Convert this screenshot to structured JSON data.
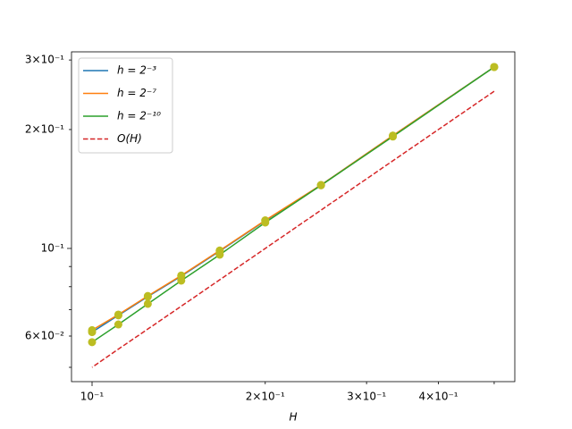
{
  "chart_data": {
    "type": "line",
    "xlabel": "H",
    "x": [
      0.5,
      0.3333,
      0.25,
      0.2,
      0.1667,
      0.1429,
      0.125,
      0.1111,
      0.1
    ],
    "series": [
      {
        "name": "h = 2⁻³",
        "color": "#1f77b4",
        "values": [
          0.288,
          0.193,
          0.1447,
          0.1175,
          0.0985,
          0.0851,
          0.0755,
          0.0677,
          0.0614
        ]
      },
      {
        "name": "h = 2⁻⁷",
        "color": "#ff7f0e",
        "values": [
          0.288,
          0.193,
          0.1447,
          0.1178,
          0.0988,
          0.0854,
          0.0758,
          0.068,
          0.0621
        ]
      },
      {
        "name": "h = 2⁻¹⁰",
        "color": "#2ca02c",
        "values": [
          0.288,
          0.192,
          0.1445,
          0.1163,
          0.0964,
          0.0829,
          0.0724,
          0.0642,
          0.0579
        ]
      },
      {
        "name": "O(H)",
        "color": "#d62728",
        "dashed": true,
        "markers": false,
        "values": [
          0.25,
          0.1667,
          0.125,
          0.1,
          0.0833,
          0.0714,
          0.0625,
          0.0556,
          0.05
        ]
      }
    ],
    "marker_color": "#bcbd22",
    "xscale": "log",
    "yscale": "log",
    "xlim": [
      0.0921,
      0.543
    ],
    "ylim": [
      0.046,
      0.3146
    ],
    "xticks": [
      {
        "value": 0.1,
        "label": "10⁻¹"
      },
      {
        "value": 0.2,
        "label": "2×10⁻¹"
      },
      {
        "value": 0.3,
        "label": "3×10⁻¹"
      },
      {
        "value": 0.4,
        "label": "4×10⁻¹"
      }
    ],
    "xminor": [
      0.5
    ],
    "yticks": [
      {
        "value": 0.06,
        "label": "6×10⁻²"
      },
      {
        "value": 0.1,
        "label": "10⁻¹"
      },
      {
        "value": 0.2,
        "label": "2×10⁻¹"
      },
      {
        "value": 0.3,
        "label": "3×10⁻¹"
      }
    ],
    "yminor": [
      0.05,
      0.07,
      0.08,
      0.09
    ],
    "legend": "upper left",
    "grid": false
  }
}
